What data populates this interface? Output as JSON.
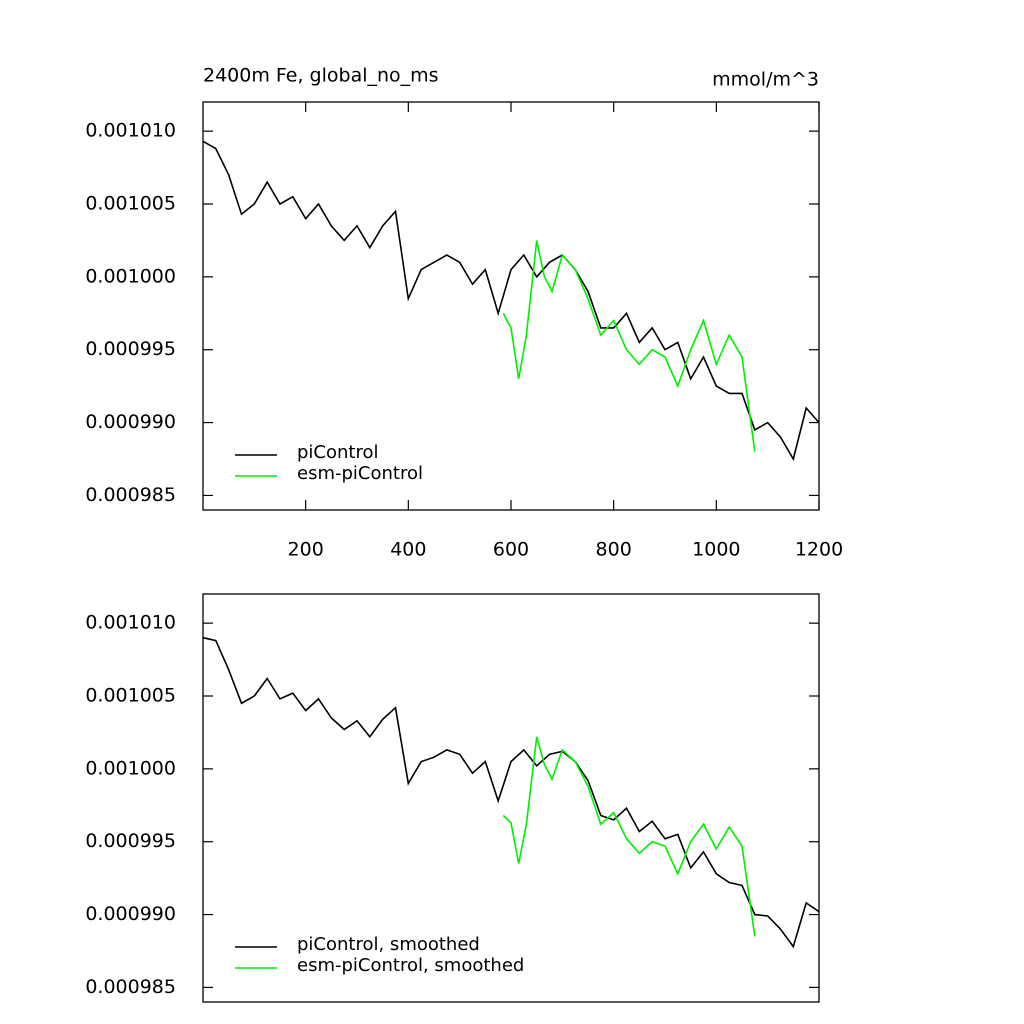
{
  "chart_data": [
    {
      "type": "line",
      "title": "2400m Fe, global_no_ms",
      "units": "mmol/m^3",
      "legend": "lower left",
      "xlim": [
        0,
        1200
      ],
      "xticks": [
        200,
        400,
        600,
        800,
        1000,
        1200
      ],
      "ylim": [
        0.000984,
        0.001012
      ],
      "yticks": [
        {
          "value": 0.000985,
          "label": "0.000985"
        },
        {
          "value": 0.00099,
          "label": "0.000990"
        },
        {
          "value": 0.000995,
          "label": "0.000995"
        },
        {
          "value": 0.001,
          "label": "0.001000"
        },
        {
          "value": 0.001005,
          "label": "0.001005"
        },
        {
          "value": 0.00101,
          "label": "0.001010"
        }
      ],
      "series": [
        {
          "name": "piControl",
          "color": "#000000",
          "x": [
            0,
            25,
            50,
            75,
            100,
            125,
            150,
            175,
            200,
            225,
            250,
            275,
            300,
            325,
            350,
            375,
            400,
            425,
            450,
            475,
            500,
            525,
            550,
            575,
            600,
            625,
            650,
            675,
            700,
            725,
            750,
            775,
            800,
            825,
            850,
            875,
            900,
            925,
            950,
            975,
            1000,
            1025,
            1050,
            1075,
            1100,
            1125,
            1150,
            1175,
            1200
          ],
          "values": [
            0.0010093,
            0.0010088,
            0.001007,
            0.0010043,
            0.001005,
            0.0010065,
            0.001005,
            0.0010055,
            0.001004,
            0.001005,
            0.0010035,
            0.0010025,
            0.0010035,
            0.001002,
            0.0010035,
            0.0010045,
            0.0009985,
            0.0010005,
            0.001001,
            0.0010015,
            0.001001,
            0.0009995,
            0.0010005,
            0.0009975,
            0.0010005,
            0.0010015,
            0.001,
            0.001001,
            0.0010015,
            0.0010005,
            0.000999,
            0.0009965,
            0.0009965,
            0.0009975,
            0.0009955,
            0.0009965,
            0.000995,
            0.0009955,
            0.000993,
            0.0009945,
            0.0009925,
            0.000992,
            0.000992,
            0.0009895,
            0.00099,
            0.000989,
            0.0009875,
            0.000991,
            0.00099
          ]
        },
        {
          "name": "esm-piControl",
          "color": "#00ee00",
          "x": [
            585,
            600,
            615,
            630,
            650,
            665,
            680,
            700,
            725,
            750,
            775,
            800,
            825,
            850,
            875,
            900,
            925,
            950,
            975,
            1000,
            1025,
            1050,
            1075
          ],
          "values": [
            0.0009975,
            0.0009965,
            0.000993,
            0.000996,
            0.0010025,
            0.001,
            0.000999,
            0.0010015,
            0.0010005,
            0.0009985,
            0.000996,
            0.000997,
            0.000995,
            0.000994,
            0.000995,
            0.0009945,
            0.0009925,
            0.000995,
            0.000997,
            0.000994,
            0.000996,
            0.0009945,
            0.000988
          ]
        }
      ]
    },
    {
      "type": "line",
      "legend": "lower left",
      "xlim": [
        0,
        1200
      ],
      "ylim": [
        0.000984,
        0.001012
      ],
      "yticks": [
        {
          "value": 0.000985,
          "label": "0.000985"
        },
        {
          "value": 0.00099,
          "label": "0.000990"
        },
        {
          "value": 0.000995,
          "label": "0.000995"
        },
        {
          "value": 0.001,
          "label": "0.001000"
        },
        {
          "value": 0.001005,
          "label": "0.001005"
        },
        {
          "value": 0.00101,
          "label": "0.001010"
        }
      ],
      "series": [
        {
          "name": "piControl, smoothed",
          "color": "#000000",
          "x": [
            0,
            25,
            50,
            75,
            100,
            125,
            150,
            175,
            200,
            225,
            250,
            275,
            300,
            325,
            350,
            375,
            400,
            425,
            450,
            475,
            500,
            525,
            550,
            575,
            600,
            625,
            650,
            675,
            700,
            725,
            750,
            775,
            800,
            825,
            850,
            875,
            900,
            925,
            950,
            975,
            1000,
            1025,
            1050,
            1075,
            1100,
            1125,
            1150,
            1175,
            1200
          ],
          "values": [
            0.001009,
            0.0010088,
            0.0010068,
            0.0010045,
            0.001005,
            0.0010062,
            0.0010048,
            0.0010052,
            0.001004,
            0.0010048,
            0.0010035,
            0.0010027,
            0.0010033,
            0.0010022,
            0.0010034,
            0.0010042,
            0.000999,
            0.0010005,
            0.0010008,
            0.0010013,
            0.001001,
            0.0009997,
            0.0010005,
            0.0009978,
            0.0010005,
            0.0010013,
            0.0010002,
            0.001001,
            0.0010012,
            0.0010005,
            0.0009992,
            0.0009968,
            0.0009965,
            0.0009973,
            0.0009957,
            0.0009964,
            0.0009952,
            0.0009955,
            0.0009932,
            0.0009943,
            0.0009928,
            0.0009922,
            0.000992,
            0.00099,
            0.0009899,
            0.000989,
            0.0009878,
            0.0009908,
            0.0009902
          ]
        },
        {
          "name": "esm-piControl, smoothed",
          "color": "#00ee00",
          "x": [
            585,
            600,
            615,
            630,
            650,
            665,
            680,
            700,
            725,
            750,
            775,
            800,
            825,
            850,
            875,
            900,
            925,
            950,
            975,
            1000,
            1025,
            1050,
            1075
          ],
          "values": [
            0.0009968,
            0.0009963,
            0.0009935,
            0.0009962,
            0.0010022,
            0.0010003,
            0.0009993,
            0.0010013,
            0.0010005,
            0.0009988,
            0.0009962,
            0.000997,
            0.0009952,
            0.0009942,
            0.000995,
            0.0009947,
            0.0009928,
            0.000995,
            0.0009962,
            0.0009945,
            0.000996,
            0.0009947,
            0.0009885
          ]
        }
      ]
    }
  ]
}
